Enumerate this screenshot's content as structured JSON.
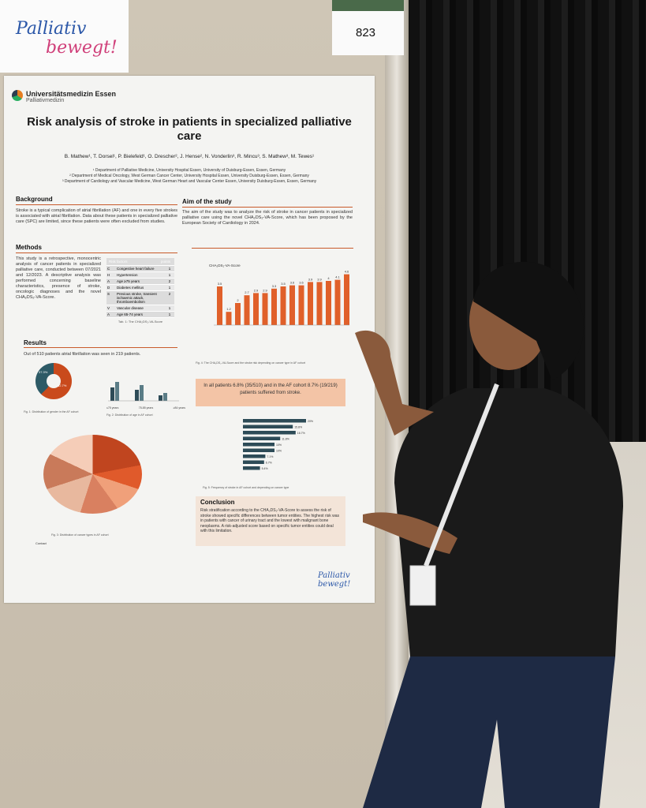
{
  "sign": {
    "brand_line1": "Palliativ",
    "brand_line2": "bewegt!",
    "poster_number": "823"
  },
  "poster": {
    "university": "Universitätsmedizin Essen",
    "department": "Palliativmedizin",
    "title": "Risk analysis of stroke in patients in specialized palliative care",
    "authors": "B. Mathew¹, T. Dorsel¹, P. Bielefeld¹, O. Drescher², J. Hense², N. Vonderlin³, R. Mincu³, S. Mathew³, M. Tewes¹",
    "affiliations": [
      "¹ Department of Palliative Medicine, University Hospital Essen, University of Duisburg-Essen, Essen, Germany",
      "² Department of Medical Oncology, West German Cancer Center, University Hospital Essen, University Duisburg-Essen, Essen, Germany",
      "³ Department of Cardiology and Vascular Medicine, West German Heart and Vascular Center Essen, University Duisburg-Essen, Essen, Germany"
    ],
    "background": {
      "heading": "Background",
      "text": "Stroke is a typical complication of atrial fibrillation (AF) and one in every five strokes is associated with atrial fibrillation. Data about these patients in specialized palliative care (SPC) are limited, since these patients were often excluded from studies."
    },
    "aim": {
      "heading": "Aim of the study",
      "text": "The aim of the study was to analyze the risk of stroke in cancer patients in specialized palliative care using the novel CHA₂DS₂-VA-Score, which has been proposed by the European Society of Cardiology in 2024."
    },
    "methods": {
      "heading": "Methods",
      "text": "This study is a retrospective, monocentric analysis of cancer patients in specialized palliative care, conducted between 07/2021 and 12/2023. A descriptive analysis was performed concerning baseline characteristics, presence of stroke, oncologic diagnoses and the novel CHA₂DS₂-VA-Score."
    },
    "risk_table": {
      "header_factor": "Risk factors",
      "header_points": "points",
      "rows": [
        {
          "k": "C",
          "f": "Congestive heart failure",
          "p": "1"
        },
        {
          "k": "H",
          "f": "Hypertension",
          "p": "1"
        },
        {
          "k": "A",
          "f": "Age ≥75 years",
          "p": "2"
        },
        {
          "k": "D",
          "f": "Diabetes mellitus",
          "p": "1"
        },
        {
          "k": "S",
          "f": "Previous stroke, transient ischaemic attack, thromboembolism",
          "p": "2"
        },
        {
          "k": "V",
          "f": "Vascular disease",
          "p": "1"
        },
        {
          "k": "A",
          "f": "Age 65-74 years",
          "p": "1"
        }
      ],
      "caption": "Tab. 1: The CHA₂DS₂-VA-Score"
    },
    "results": {
      "heading": "Results",
      "text": "Out of 510 patients atrial fibrillation was seen in 219 patients.",
      "fig1": "Fig. 1: Distribution of gender in the AF cohort",
      "fig2": "Fig. 2: Distribution of age in AF cohort",
      "fig3": "Fig. 3: Distribution of cancer types in AF cohort",
      "donut_male": "37.3%",
      "donut_female": "62.7%",
      "age_groups": [
        "≤75 years",
        "75-85 years",
        "≥84 years"
      ]
    },
    "fig4_caption": "Fig. 4: The CHA₂DS₂-VA-Score and the stroke risk depending on cancer type in AF cohort",
    "callout": "In all patients 6.8% (35/510) and in the AF cohort 8.7% (19/219) patients suffered from stroke.",
    "fig5_caption": "Fig. 5: Frequency of stroke in AF cohort and depending on cancer type",
    "conclusion": {
      "heading": "Conclusion",
      "text": "Risk stratification according to the CHA₂DS₂-VA-Score to assess the risk of stroke showed specific differences between tumor entities. The highest risk was in patients with cancer of urinary tract and the lowest with malignant bone neoplasms. A risk-adjusted score based on specific tumor entities could deal with this limitation."
    },
    "contact": "Contact",
    "footer_brand": "Palliativ bewegt!"
  },
  "chart_data": [
    {
      "type": "bar",
      "title": "Fig. 4",
      "ylabel": "CHA₂DS₂-VA-Score",
      "values": [
        3.5,
        1.2,
        2,
        2.7,
        2.9,
        2.9,
        3.3,
        3.5,
        3.6,
        3.6,
        3.9,
        3.9,
        4,
        4.1,
        4.6
      ],
      "ylim": [
        0,
        5
      ]
    },
    {
      "type": "bar",
      "orientation": "horizontal",
      "title": "Fig. 5",
      "values": [
        20,
        15.8,
        16.7,
        11.8,
        10,
        10,
        7.1,
        6.7,
        5.4
      ],
      "xlim": [
        0,
        25
      ]
    }
  ]
}
